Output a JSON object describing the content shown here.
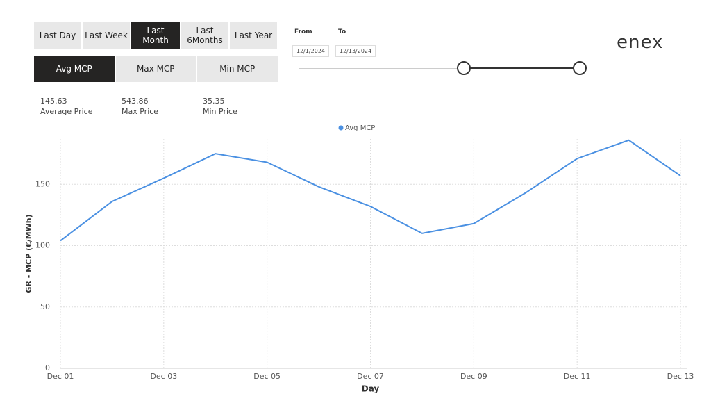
{
  "range_buttons": [
    {
      "label": "Last Day"
    },
    {
      "label": "Last Week"
    },
    {
      "label": "Last Month",
      "selected": true
    },
    {
      "label": "Last 6Months"
    },
    {
      "label": "Last Year"
    }
  ],
  "measure_buttons": [
    {
      "label": "Avg MCP",
      "selected": true
    },
    {
      "label": "Max MCP"
    },
    {
      "label": "Min MCP"
    }
  ],
  "metrics": [
    {
      "value": "145.63",
      "label": "Average Price"
    },
    {
      "value": "543.86",
      "label": "Max Price"
    },
    {
      "value": "35.35",
      "label": "Min Price"
    }
  ],
  "date_filter": {
    "from_label": "From",
    "to_label": "To",
    "from": "12/1/2024",
    "to": "12/13/2024"
  },
  "logo": "enex",
  "chart_data": {
    "type": "line",
    "legend": "Avg MCP",
    "x_label": "Day",
    "y_label": "GR - MCP (€/MWh)",
    "categories": [
      "Dec 01",
      null,
      "Dec 03",
      null,
      "Dec 05",
      null,
      "Dec 07",
      null,
      "Dec 09",
      null,
      "Dec 11",
      null,
      "Dec 13"
    ],
    "values": [
      104,
      136,
      155,
      175,
      168,
      148,
      132,
      110,
      118,
      143,
      171,
      186,
      157
    ],
    "color": "#4a90e2",
    "ylim": [
      0,
      187
    ],
    "yticks": [
      0,
      50,
      100,
      150
    ],
    "grid": true
  }
}
